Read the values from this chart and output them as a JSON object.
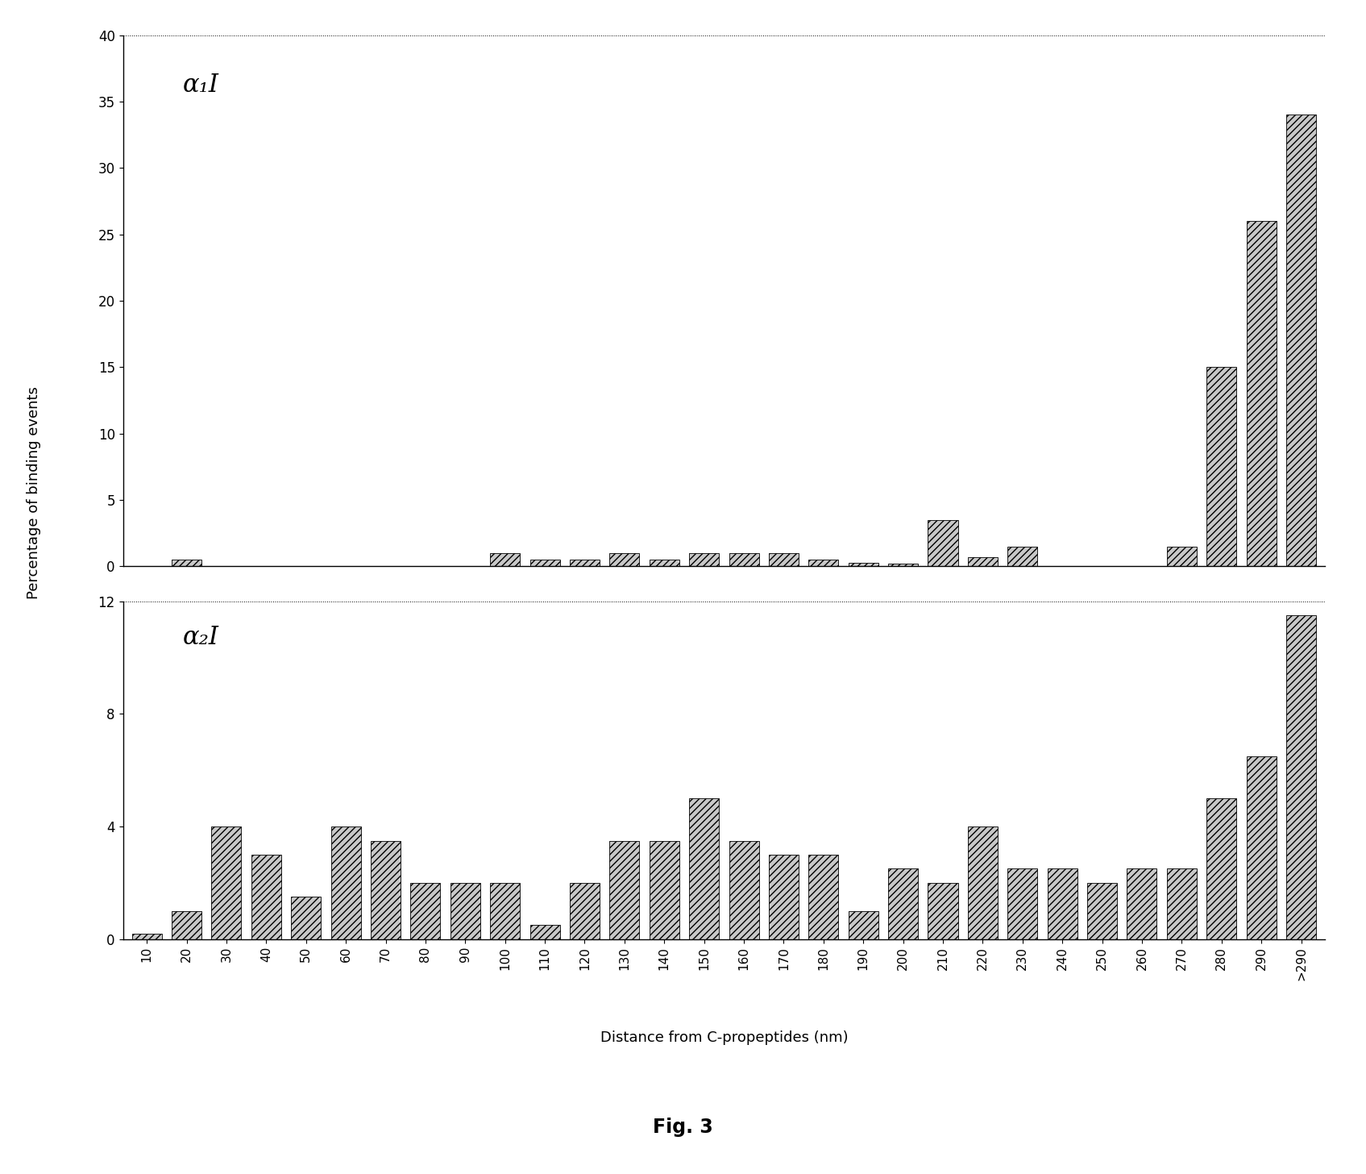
{
  "categories": [
    "10",
    "20",
    "30",
    "40",
    "50",
    "60",
    "70",
    "80",
    "90",
    "100",
    "110",
    "120",
    "130",
    "140",
    "150",
    "160",
    "170",
    "180",
    "190",
    "200",
    "210",
    "220",
    "230",
    "240",
    "250",
    "260",
    "270",
    "280",
    "290",
    ">290"
  ],
  "alpha1_values": [
    0.0,
    0.5,
    0.0,
    0.0,
    0.0,
    0.0,
    0.0,
    0.0,
    0.0,
    1.0,
    0.5,
    0.5,
    1.0,
    0.5,
    1.0,
    1.0,
    1.0,
    0.5,
    0.3,
    0.2,
    3.5,
    0.7,
    1.5,
    0.0,
    0.0,
    0.0,
    1.5,
    15.0,
    26.0,
    34.0
  ],
  "alpha2_values": [
    0.2,
    1.0,
    4.0,
    3.0,
    1.5,
    4.0,
    3.5,
    2.0,
    2.0,
    2.0,
    0.5,
    2.0,
    3.5,
    3.5,
    5.0,
    3.5,
    3.0,
    3.0,
    1.0,
    2.5,
    2.0,
    4.0,
    2.5,
    2.5,
    2.0,
    2.5,
    2.5,
    5.0,
    6.5,
    11.5
  ],
  "alpha1_label": "α₁I",
  "alpha2_label": "α₂I",
  "ylabel": "Percentage of binding events",
  "xlabel": "Distance from C-propeptides (nm)",
  "fig_label": "Fig. 3",
  "alpha1_ylim": [
    0,
    40
  ],
  "alpha2_ylim": [
    0,
    12
  ],
  "alpha1_yticks": [
    0,
    5,
    10,
    15,
    20,
    25,
    30,
    35,
    40
  ],
  "alpha2_yticks": [
    0,
    4,
    8,
    12
  ],
  "background_color": "#ffffff"
}
